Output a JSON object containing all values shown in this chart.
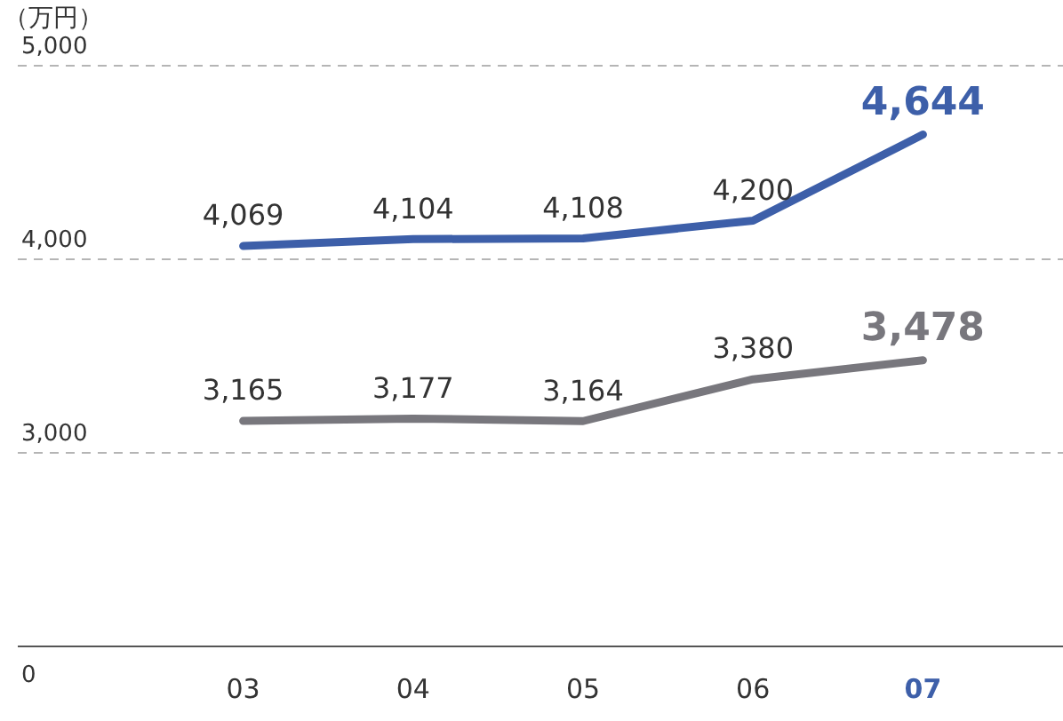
{
  "chart_data": {
    "type": "line",
    "ylabel": "（万円）",
    "categories": [
      "03",
      "04",
      "05",
      "06",
      "07"
    ],
    "series": [
      {
        "color": "#3d5fa9",
        "values": [
          4069,
          4104,
          4108,
          4200,
          4644
        ],
        "value_labels": [
          "4,069",
          "4,104",
          "4,108",
          "4,200",
          "4,644"
        ]
      },
      {
        "color": "#78777d",
        "values": [
          3165,
          3177,
          3164,
          3380,
          3478
        ],
        "value_labels": [
          "3,165",
          "3,177",
          "3,164",
          "3,380",
          "3,478"
        ]
      }
    ],
    "ylim": [
      2000,
      5000
    ],
    "yticks": [
      {
        "value": 3000,
        "label": "3,000"
      },
      {
        "value": 4000,
        "label": "4,000"
      },
      {
        "value": 5000,
        "label": "5,000"
      }
    ],
    "annotations": [
      "0"
    ],
    "grid": "y",
    "marker": "none",
    "line_style": "solid"
  }
}
